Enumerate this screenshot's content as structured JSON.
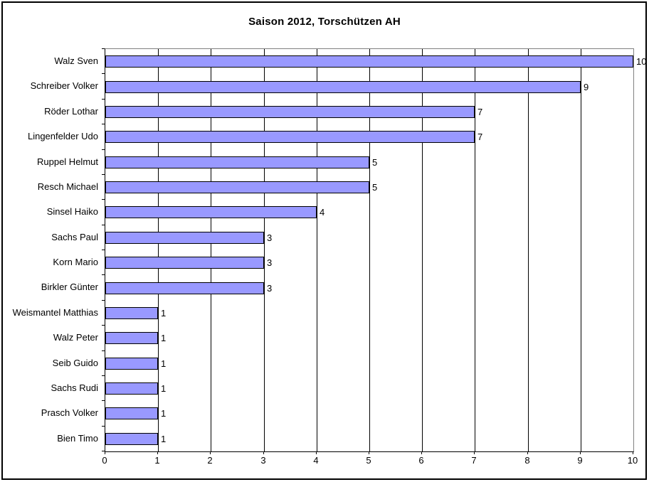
{
  "chart_data": {
    "type": "bar",
    "orientation": "horizontal",
    "title": "Saison 2012, Torschützen AH",
    "categories": [
      "Walz Sven",
      "Schreiber Volker",
      "Röder Lothar",
      "Lingenfelder Udo",
      "Ruppel Helmut",
      "Resch Michael",
      "Sinsel Haiko",
      "Sachs Paul",
      "Korn Mario",
      "Birkler Günter",
      "Weismantel Matthias",
      "Walz Peter",
      "Seib Guido",
      "Sachs Rudi",
      "Prasch Volker",
      "Bien Timo"
    ],
    "values": [
      10,
      9,
      7,
      7,
      5,
      5,
      4,
      3,
      3,
      3,
      1,
      1,
      1,
      1,
      1,
      1
    ],
    "data_labels": [
      "10",
      "9",
      "7",
      "7",
      "5",
      "5",
      "4",
      "3",
      "3",
      "3",
      "1",
      "1",
      "1",
      "1",
      "1",
      "1"
    ],
    "xlabel": "",
    "ylabel": "",
    "xlim": [
      0,
      10
    ],
    "x_ticks": [
      "0",
      "1",
      "2",
      "3",
      "4",
      "5",
      "6",
      "7",
      "8",
      "9",
      "10"
    ],
    "grid": "vertical-major",
    "legend": "none",
    "colors": {
      "bar_fill": "#9999FF",
      "bar_border": "#000000",
      "gridline": "#000000",
      "axis": "#000000",
      "plot_border": "#808080",
      "background": "#FFFFFF",
      "text": "#000000"
    }
  }
}
